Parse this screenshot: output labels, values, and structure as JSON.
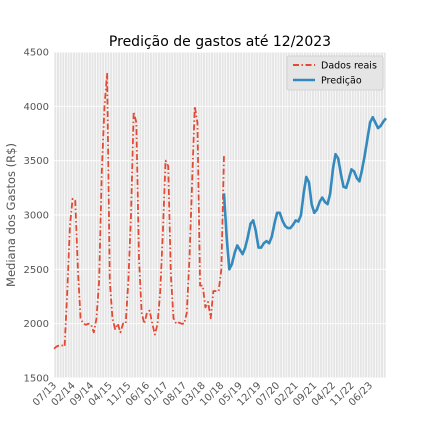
{
  "chart_data": {
    "type": "line",
    "title": "Predição de gastos até 12/2023",
    "xlabel": "",
    "ylabel": "Mediana dos Gastos (R$)",
    "ylim": [
      1500,
      4500
    ],
    "yticks": [
      1500,
      2000,
      2500,
      3000,
      3500,
      4000,
      4500
    ],
    "x_range_months": [
      "2013-07",
      "2023-12"
    ],
    "xtick_labels": [
      "07/13",
      "02/14",
      "09/14",
      "04/15",
      "11/15",
      "06/16",
      "01/17",
      "08/17",
      "03/18",
      "10/18",
      "05/19",
      "12/19",
      "07/20",
      "02/21",
      "09/21",
      "04/22",
      "11/22",
      "06/23"
    ],
    "grid": true,
    "legend_position": "upper-right",
    "colors": {
      "real": "#e24a33",
      "pred": "#348abd",
      "background": "#e5e5e5",
      "grid": "#ffffff"
    },
    "series": [
      {
        "name": "Dados reais",
        "style": "dash-dot",
        "color": "#e24a33",
        "points": [
          [
            "2013-07",
            1770
          ],
          [
            "2013-08",
            1790
          ],
          [
            "2013-09",
            1800
          ],
          [
            "2013-10",
            1800
          ],
          [
            "2013-11",
            1790
          ],
          [
            "2013-12",
            2300
          ],
          [
            "2014-01",
            2900
          ],
          [
            "2014-02",
            3150
          ],
          [
            "2014-03",
            3130
          ],
          [
            "2014-04",
            2500
          ],
          [
            "2014-05",
            2050
          ],
          [
            "2014-06",
            2000
          ],
          [
            "2014-07",
            1990
          ],
          [
            "2014-08",
            2000
          ],
          [
            "2014-09",
            1990
          ],
          [
            "2014-10",
            1920
          ],
          [
            "2014-11",
            2050
          ],
          [
            "2014-12",
            2400
          ],
          [
            "2015-01",
            3400
          ],
          [
            "2015-02",
            4000
          ],
          [
            "2015-03",
            4300
          ],
          [
            "2015-04",
            2400
          ],
          [
            "2015-05",
            2050
          ],
          [
            "2015-06",
            1950
          ],
          [
            "2015-07",
            2000
          ],
          [
            "2015-08",
            1920
          ],
          [
            "2015-09",
            2000
          ],
          [
            "2015-10",
            2000
          ],
          [
            "2015-11",
            2400
          ],
          [
            "2015-12",
            3000
          ],
          [
            "2016-01",
            3950
          ],
          [
            "2016-02",
            3850
          ],
          [
            "2016-03",
            2600
          ],
          [
            "2016-04",
            2100
          ],
          [
            "2016-05",
            2000
          ],
          [
            "2016-06",
            2100
          ],
          [
            "2016-07",
            2120
          ],
          [
            "2016-08",
            2000
          ],
          [
            "2016-09",
            1900
          ],
          [
            "2016-10",
            2000
          ],
          [
            "2016-11",
            2300
          ],
          [
            "2016-12",
            2850
          ],
          [
            "2017-01",
            3500
          ],
          [
            "2017-02",
            3450
          ],
          [
            "2017-03",
            2450
          ],
          [
            "2017-04",
            2050
          ],
          [
            "2017-05",
            2000
          ],
          [
            "2017-06",
            2010
          ],
          [
            "2017-07",
            2000
          ],
          [
            "2017-08",
            2000
          ],
          [
            "2017-09",
            2100
          ],
          [
            "2017-10",
            2600
          ],
          [
            "2017-11",
            3300
          ],
          [
            "2017-12",
            4000
          ],
          [
            "2018-01",
            3850
          ],
          [
            "2018-02",
            2350
          ],
          [
            "2018-03",
            2350
          ],
          [
            "2018-04",
            2150
          ],
          [
            "2018-05",
            2200
          ],
          [
            "2018-06",
            2050
          ],
          [
            "2018-07",
            2300
          ],
          [
            "2018-08",
            2300
          ],
          [
            "2018-09",
            2300
          ],
          [
            "2018-10",
            2500
          ],
          [
            "2018-11",
            3550
          ]
        ]
      },
      {
        "name": "Predição",
        "style": "solid",
        "color": "#348abd",
        "points": [
          [
            "2018-11",
            3200
          ],
          [
            "2018-12",
            2800
          ],
          [
            "2019-01",
            2500
          ],
          [
            "2019-02",
            2550
          ],
          [
            "2019-03",
            2650
          ],
          [
            "2019-04",
            2720
          ],
          [
            "2019-05",
            2680
          ],
          [
            "2019-06",
            2640
          ],
          [
            "2019-07",
            2700
          ],
          [
            "2019-08",
            2800
          ],
          [
            "2019-09",
            2920
          ],
          [
            "2019-10",
            2950
          ],
          [
            "2019-11",
            2850
          ],
          [
            "2019-12",
            2700
          ],
          [
            "2020-01",
            2700
          ],
          [
            "2020-02",
            2740
          ],
          [
            "2020-03",
            2760
          ],
          [
            "2020-04",
            2740
          ],
          [
            "2020-05",
            2800
          ],
          [
            "2020-06",
            2920
          ],
          [
            "2020-07",
            3020
          ],
          [
            "2020-08",
            3020
          ],
          [
            "2020-09",
            2950
          ],
          [
            "2020-10",
            2900
          ],
          [
            "2020-11",
            2880
          ],
          [
            "2020-12",
            2880
          ],
          [
            "2021-01",
            2910
          ],
          [
            "2021-02",
            2950
          ],
          [
            "2021-03",
            2940
          ],
          [
            "2021-04",
            3000
          ],
          [
            "2021-05",
            3200
          ],
          [
            "2021-06",
            3350
          ],
          [
            "2021-07",
            3300
          ],
          [
            "2021-08",
            3100
          ],
          [
            "2021-09",
            3020
          ],
          [
            "2021-10",
            3050
          ],
          [
            "2021-11",
            3120
          ],
          [
            "2021-12",
            3160
          ],
          [
            "2022-01",
            3120
          ],
          [
            "2022-02",
            3100
          ],
          [
            "2022-03",
            3200
          ],
          [
            "2022-04",
            3420
          ],
          [
            "2022-05",
            3560
          ],
          [
            "2022-06",
            3520
          ],
          [
            "2022-07",
            3380
          ],
          [
            "2022-08",
            3260
          ],
          [
            "2022-09",
            3250
          ],
          [
            "2022-10",
            3330
          ],
          [
            "2022-11",
            3420
          ],
          [
            "2022-12",
            3400
          ],
          [
            "2023-01",
            3340
          ],
          [
            "2023-02",
            3310
          ],
          [
            "2023-03",
            3420
          ],
          [
            "2023-04",
            3550
          ],
          [
            "2023-05",
            3700
          ],
          [
            "2023-06",
            3850
          ],
          [
            "2023-07",
            3900
          ],
          [
            "2023-08",
            3850
          ],
          [
            "2023-09",
            3800
          ],
          [
            "2023-10",
            3820
          ],
          [
            "2023-11",
            3860
          ],
          [
            "2023-12",
            3890
          ]
        ]
      }
    ]
  }
}
